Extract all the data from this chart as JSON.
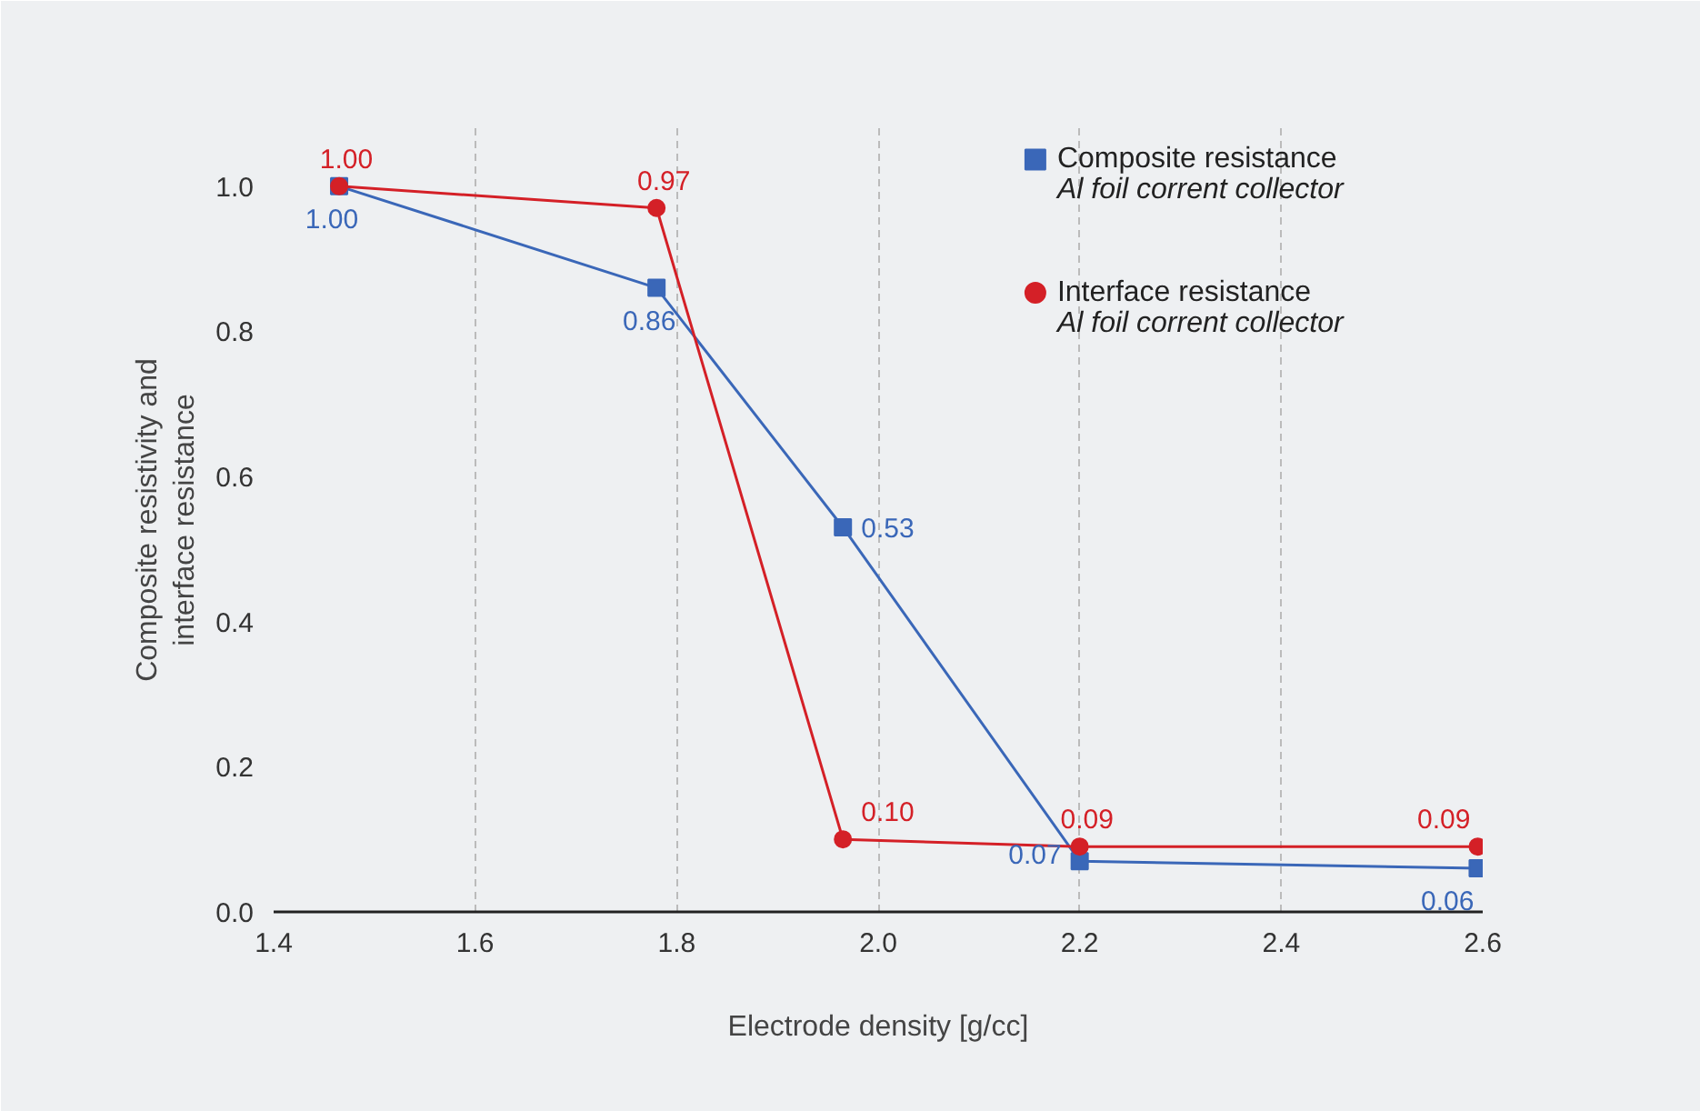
{
  "chart_data": {
    "type": "line",
    "xlabel": "Electrode density [g/cc]",
    "ylabel": "Composite resistivity and\ninterface resistance",
    "x": [
      1.465,
      1.78,
      1.965,
      2.2,
      2.595
    ],
    "series": [
      {
        "name": "Composite resistance\nAl foil corrent collector",
        "color": "#3a67b8",
        "marker": "square",
        "values": [
          1.0,
          0.86,
          0.53,
          0.07,
          0.06
        ],
        "value_labels": [
          "1.00",
          "0.86",
          "0.53",
          "0.07",
          "0.06"
        ]
      },
      {
        "name": "Interface resistance\nAl foil corrent collector",
        "color": "#d42027",
        "marker": "circle",
        "values": [
          1.0,
          0.97,
          0.1,
          0.09,
          0.09
        ],
        "value_labels": [
          "1.00",
          "0.97",
          "0.10",
          "0.09",
          "0.09"
        ]
      }
    ],
    "xlim": [
      1.4,
      2.6
    ],
    "ylim": [
      0.0,
      1.08
    ],
    "xticks": [
      {
        "value": 1.4,
        "label": "1.4"
      },
      {
        "value": 1.6,
        "label": "1.6"
      },
      {
        "value": 1.8,
        "label": "1.8"
      },
      {
        "value": 2.0,
        "label": "2.0"
      },
      {
        "value": 2.2,
        "label": "2.2"
      },
      {
        "value": 2.4,
        "label": "2.4"
      },
      {
        "value": 2.6,
        "label": "2.6"
      }
    ],
    "yticks": [
      {
        "value": 0.0,
        "label": "0.0"
      },
      {
        "value": 0.2,
        "label": "0.2"
      },
      {
        "value": 0.4,
        "label": "0.4"
      },
      {
        "value": 0.6,
        "label": "0.6"
      },
      {
        "value": 0.8,
        "label": "0.8"
      },
      {
        "value": 1.0,
        "label": "1.0"
      }
    ],
    "grid": "x",
    "legend": "top right"
  }
}
